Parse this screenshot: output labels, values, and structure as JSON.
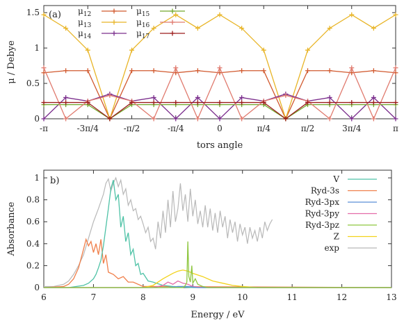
{
  "chart_data": [
    {
      "type": "line",
      "panel_label": "(a)",
      "xlabel": "tors angle",
      "ylabel": "μ / Debye",
      "x_tick_labels": [
        "-π",
        "-3π/4",
        "-π/2",
        "-π/4",
        "0",
        "π/4",
        "π/2",
        "3π/4",
        "π"
      ],
      "x": [
        -1.0,
        -0.875,
        -0.75,
        -0.625,
        -0.5,
        -0.375,
        -0.25,
        -0.125,
        0.0,
        0.125,
        0.25,
        0.375,
        0.5,
        0.625,
        0.75,
        0.875,
        1.0
      ],
      "x_unit": "π",
      "xlim": [
        -1,
        1
      ],
      "ylim": [
        0,
        1.6
      ],
      "y_ticks": [
        "0",
        "0.5",
        "1",
        "1.5"
      ],
      "series": [
        {
          "name": "μ12",
          "base": "μ",
          "sub": "12",
          "color": "#d1592e",
          "values": [
            0.65,
            0.68,
            0.68,
            0.0,
            0.68,
            0.68,
            0.65,
            0.68,
            0.65,
            0.68,
            0.68,
            0.0,
            0.68,
            0.68,
            0.65,
            0.68,
            0.65
          ]
        },
        {
          "name": "μ13",
          "base": "μ",
          "sub": "13",
          "color": "#e8b425",
          "values": [
            1.47,
            1.28,
            0.97,
            0.0,
            0.97,
            1.28,
            1.47,
            1.28,
            1.47,
            1.28,
            0.97,
            0.0,
            0.97,
            1.28,
            1.47,
            1.28,
            1.47
          ]
        },
        {
          "name": "μ14",
          "base": "μ",
          "sub": "14",
          "color": "#7a2d8c",
          "values": [
            0.0,
            0.3,
            0.25,
            0.35,
            0.25,
            0.3,
            0.0,
            0.3,
            0.0,
            0.3,
            0.25,
            0.35,
            0.25,
            0.3,
            0.0,
            0.3,
            0.0
          ]
        },
        {
          "name": "μ15",
          "base": "μ",
          "sub": "15",
          "color": "#70a82a",
          "values": [
            0.2,
            0.2,
            0.2,
            0.0,
            0.2,
            0.2,
            0.2,
            0.2,
            0.2,
            0.2,
            0.2,
            0.0,
            0.2,
            0.2,
            0.2,
            0.2,
            0.2
          ]
        },
        {
          "name": "μ16",
          "base": "μ",
          "sub": "16",
          "color": "#e07a6e",
          "values": [
            0.72,
            0.0,
            0.25,
            0.33,
            0.25,
            0.0,
            0.72,
            0.0,
            0.72,
            0.0,
            0.25,
            0.33,
            0.25,
            0.0,
            0.72,
            0.0,
            0.72
          ]
        },
        {
          "name": "μ17",
          "base": "μ",
          "sub": "17",
          "color": "#9c1c1c",
          "values": [
            0.23,
            0.23,
            0.23,
            0.0,
            0.23,
            0.23,
            0.23,
            0.23,
            0.23,
            0.23,
            0.23,
            0.0,
            0.23,
            0.23,
            0.23,
            0.23,
            0.23
          ]
        }
      ]
    },
    {
      "type": "line",
      "panel_label": "b)",
      "xlabel": "Energy / eV",
      "ylabel": "Absorbance",
      "xlim": [
        6,
        13
      ],
      "ylim": [
        0,
        1.07
      ],
      "x_ticks": [
        6,
        7,
        8,
        9,
        10,
        11,
        12,
        13
      ],
      "y_ticks": [
        0,
        0.2,
        0.4,
        0.6,
        0.8,
        1
      ],
      "series": [
        {
          "name": "V",
          "color": "#4ec2a6",
          "x": [
            6.0,
            6.5,
            6.8,
            6.9,
            7.0,
            7.05,
            7.1,
            7.15,
            7.2,
            7.25,
            7.3,
            7.35,
            7.4,
            7.45,
            7.5,
            7.55,
            7.6,
            7.65,
            7.7,
            7.75,
            7.8,
            7.85,
            7.9,
            7.95,
            8.0,
            8.1,
            8.2,
            8.4,
            8.6,
            9.0,
            13.0
          ],
          "values": [
            0.0,
            0.0,
            0.02,
            0.04,
            0.08,
            0.12,
            0.18,
            0.25,
            0.38,
            0.55,
            0.72,
            0.9,
            0.98,
            0.8,
            0.85,
            0.55,
            0.65,
            0.42,
            0.5,
            0.3,
            0.35,
            0.2,
            0.22,
            0.12,
            0.13,
            0.06,
            0.05,
            0.02,
            0.01,
            0.0,
            0.0
          ]
        },
        {
          "name": "Ryd-3s",
          "color": "#f07f4a",
          "x": [
            6.0,
            6.4,
            6.5,
            6.6,
            6.7,
            6.8,
            6.85,
            6.9,
            6.95,
            7.0,
            7.05,
            7.1,
            7.15,
            7.2,
            7.25,
            7.3,
            7.4,
            7.5,
            7.6,
            7.7,
            7.8,
            8.0,
            13.0
          ],
          "values": [
            0.0,
            0.01,
            0.03,
            0.08,
            0.18,
            0.35,
            0.44,
            0.38,
            0.42,
            0.32,
            0.4,
            0.3,
            0.44,
            0.22,
            0.3,
            0.14,
            0.12,
            0.08,
            0.1,
            0.05,
            0.05,
            0.01,
            0.0
          ]
        },
        {
          "name": "Ryd-3px",
          "color": "#5b8fd6",
          "x": [
            6.0,
            8.5,
            8.7,
            8.9,
            9.1,
            13.0
          ],
          "values": [
            0.0,
            0.0,
            0.01,
            0.01,
            0.0,
            0.0
          ]
        },
        {
          "name": "Ryd-3py",
          "color": "#e36ba8",
          "x": [
            6.0,
            8.2,
            8.4,
            8.5,
            8.6,
            8.7,
            8.8,
            8.9,
            9.0,
            9.2,
            13.0
          ],
          "values": [
            0.0,
            0.0,
            0.02,
            0.05,
            0.03,
            0.06,
            0.04,
            0.03,
            0.01,
            0.0,
            0.0
          ]
        },
        {
          "name": "Ryd-3pz",
          "color": "#8ec63f",
          "x": [
            6.0,
            8.8,
            8.85,
            8.88,
            8.9,
            8.92,
            8.95,
            8.98,
            9.0,
            9.05,
            9.1,
            9.2,
            9.3,
            13.0
          ],
          "values": [
            0.0,
            0.0,
            0.02,
            0.05,
            0.42,
            0.1,
            0.05,
            0.2,
            0.04,
            0.08,
            0.03,
            0.01,
            0.0,
            0.0
          ]
        },
        {
          "name": "Z",
          "color": "#f2d21b",
          "x": [
            6.0,
            8.0,
            8.2,
            8.4,
            8.6,
            8.7,
            8.8,
            8.9,
            9.0,
            9.2,
            9.4,
            9.6,
            9.8,
            10.0,
            10.3,
            13.0
          ],
          "values": [
            0.0,
            0.0,
            0.02,
            0.08,
            0.13,
            0.15,
            0.16,
            0.15,
            0.13,
            0.1,
            0.06,
            0.04,
            0.02,
            0.01,
            0.0,
            0.0
          ]
        },
        {
          "name": "exp",
          "color": "#b8b8b8",
          "x": [
            6.0,
            6.2,
            6.4,
            6.5,
            6.6,
            6.7,
            6.8,
            6.9,
            7.0,
            7.1,
            7.2,
            7.25,
            7.3,
            7.35,
            7.4,
            7.45,
            7.5,
            7.55,
            7.6,
            7.65,
            7.7,
            7.75,
            7.8,
            7.85,
            7.9,
            7.95,
            8.0,
            8.05,
            8.1,
            8.15,
            8.2,
            8.25,
            8.3,
            8.35,
            8.4,
            8.45,
            8.5,
            8.55,
            8.6,
            8.65,
            8.7,
            8.75,
            8.8,
            8.85,
            8.9,
            8.95,
            9.0,
            9.05,
            9.1,
            9.15,
            9.2,
            9.25,
            9.3,
            9.35,
            9.4,
            9.45,
            9.5,
            9.55,
            9.6,
            9.65,
            9.7,
            9.75,
            9.8,
            9.85,
            9.9,
            9.95,
            10.0,
            10.05,
            10.1,
            10.15,
            10.2,
            10.25,
            10.3,
            10.35,
            10.4,
            10.45,
            10.5,
            10.55,
            10.6
          ],
          "values": [
            0.01,
            0.01,
            0.03,
            0.06,
            0.12,
            0.2,
            0.3,
            0.45,
            0.6,
            0.72,
            0.85,
            0.95,
            0.99,
            0.88,
            0.95,
            1.0,
            0.92,
            0.98,
            0.85,
            0.9,
            0.75,
            0.8,
            0.7,
            0.72,
            0.62,
            0.65,
            0.58,
            0.5,
            0.55,
            0.42,
            0.45,
            0.35,
            0.6,
            0.45,
            0.7,
            0.5,
            0.8,
            0.55,
            0.88,
            0.6,
            0.72,
            0.95,
            0.7,
            0.85,
            0.6,
            0.9,
            0.65,
            0.8,
            0.58,
            0.7,
            0.55,
            0.75,
            0.55,
            0.72,
            0.52,
            0.68,
            0.5,
            0.7,
            0.55,
            0.65,
            0.45,
            0.62,
            0.5,
            0.6,
            0.42,
            0.58,
            0.48,
            0.55,
            0.4,
            0.55,
            0.45,
            0.52,
            0.42,
            0.55,
            0.45,
            0.6,
            0.52,
            0.58,
            0.62
          ]
        }
      ]
    }
  ]
}
